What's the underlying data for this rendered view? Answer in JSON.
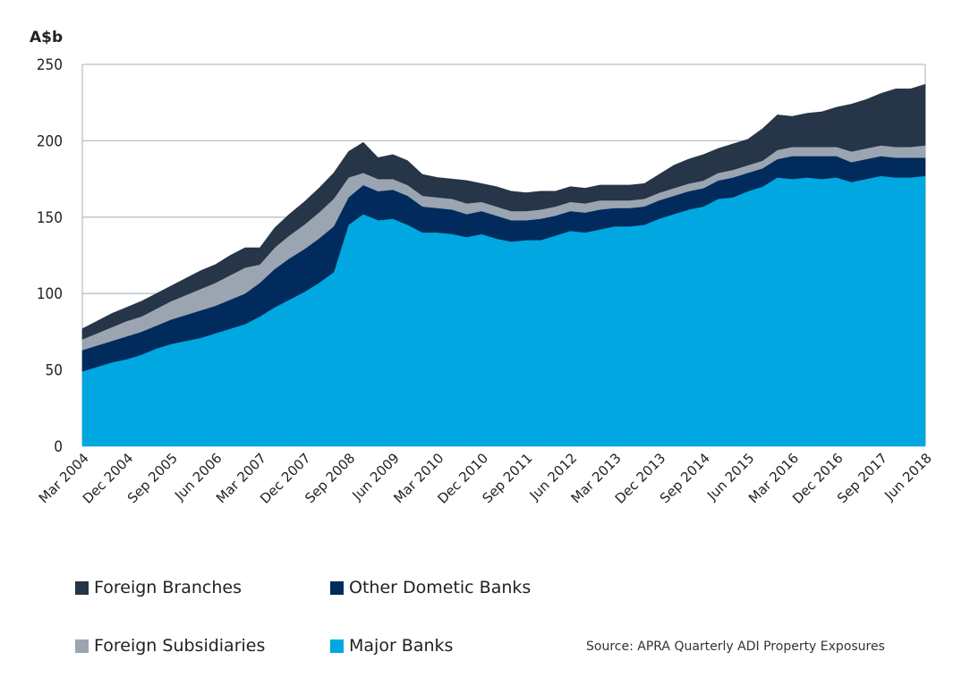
{
  "chart_data": {
    "type": "area",
    "stacked": true,
    "ylabel": "A$b",
    "ylim": [
      0,
      250
    ],
    "yticks": [
      0,
      50,
      100,
      150,
      200,
      250
    ],
    "grid": true,
    "x": [
      "Mar 2004",
      "Jun 2004",
      "Sep 2004",
      "Dec 2004",
      "Mar 2005",
      "Jun 2005",
      "Sep 2005",
      "Dec 2005",
      "Mar 2006",
      "Jun 2006",
      "Sep 2006",
      "Dec 2006",
      "Mar 2007",
      "Jun 2007",
      "Sep 2007",
      "Dec 2007",
      "Mar 2008",
      "Jun 2008",
      "Sep 2008",
      "Dec 2008",
      "Mar 2009",
      "Jun 2009",
      "Sep 2009",
      "Dec 2009",
      "Mar 2010",
      "Jun 2010",
      "Sep 2010",
      "Dec 2010",
      "Mar 2011",
      "Jun 2011",
      "Sep 2011",
      "Dec 2011",
      "Mar 2012",
      "Jun 2012",
      "Sep 2012",
      "Dec 2012",
      "Mar 2013",
      "Jun 2013",
      "Sep 2013",
      "Dec 2013",
      "Mar 2014",
      "Jun 2014",
      "Sep 2014",
      "Dec 2014",
      "Mar 2015",
      "Jun 2015",
      "Sep 2015",
      "Dec 2015",
      "Mar 2016",
      "Jun 2016",
      "Sep 2016",
      "Dec 2016",
      "Mar 2017",
      "Jun 2017",
      "Sep 2017",
      "Dec 2017",
      "Mar 2018",
      "Jun 2018"
    ],
    "xtick_labels": [
      "Mar 2004",
      "Dec 2004",
      "Sep 2005",
      "Jun 2006",
      "Mar 2007",
      "Dec 2007",
      "Sep 2008",
      "Jun 2009",
      "Mar 2010",
      "Dec 2010",
      "Sep 2011",
      "Jun 2012",
      "Mar 2013",
      "Dec 2013",
      "Sep 2014",
      "Jun 2015",
      "Mar 2016",
      "Dec 2016",
      "Sep 2017",
      "Jun 2018"
    ],
    "series": [
      {
        "name": "Major Banks",
        "color": "#00A7E0",
        "values": [
          49,
          52,
          55,
          57,
          60,
          64,
          67,
          69,
          71,
          74,
          77,
          80,
          85,
          91,
          96,
          101,
          107,
          114,
          145,
          152,
          148,
          149,
          145,
          140,
          140,
          139,
          137,
          139,
          136,
          134,
          135,
          135,
          138,
          141,
          140,
          142,
          144,
          144,
          145,
          149,
          152,
          155,
          157,
          162,
          163,
          167,
          170,
          176,
          175,
          176,
          175,
          176,
          173,
          175,
          177,
          176,
          176,
          177
        ]
      },
      {
        "name": "Other Dometic Banks",
        "color": "#002B5C",
        "values": [
          14,
          14,
          14,
          15,
          15,
          15,
          16,
          17,
          18,
          18,
          19,
          20,
          22,
          25,
          27,
          28,
          29,
          30,
          18,
          19,
          19,
          19,
          19,
          17,
          16,
          16,
          15,
          15,
          15,
          14,
          13,
          14,
          13,
          13,
          13,
          13,
          12,
          12,
          12,
          12,
          12,
          12,
          12,
          12,
          13,
          12,
          12,
          12,
          15,
          14,
          15,
          14,
          13,
          13,
          13,
          13,
          13,
          12
        ]
      },
      {
        "name": "Foreign Subsidiaries",
        "color": "#9AA5B1",
        "values": [
          7,
          8,
          9,
          10,
          10,
          11,
          12,
          13,
          14,
          15,
          16,
          17,
          12,
          14,
          15,
          16,
          17,
          18,
          13,
          8,
          8,
          7,
          7,
          7,
          7,
          7,
          7,
          6,
          6,
          6,
          6,
          6,
          6,
          6,
          6,
          6,
          5,
          5,
          5,
          5,
          5,
          5,
          5,
          5,
          5,
          5,
          5,
          6,
          6,
          6,
          6,
          6,
          7,
          7,
          7,
          7,
          7,
          8
        ]
      },
      {
        "name": "Foreign Branches",
        "color": "#263547",
        "values": [
          7,
          8,
          9,
          9,
          10,
          10,
          10,
          11,
          12,
          12,
          13,
          13,
          11,
          13,
          14,
          15,
          16,
          17,
          17,
          20,
          14,
          16,
          16,
          14,
          13,
          13,
          15,
          12,
          13,
          13,
          12,
          12,
          10,
          10,
          10,
          10,
          10,
          10,
          10,
          12,
          15,
          16,
          17,
          16,
          17,
          17,
          21,
          23,
          20,
          22,
          23,
          26,
          31,
          32,
          34,
          38,
          38,
          40
        ]
      }
    ],
    "legend": [
      "Foreign Branches",
      "Other Dometic Banks",
      "Foreign Subsidiaries",
      "Major Banks"
    ],
    "legend_position": "bottom-left",
    "source": "Source: APRA Quarterly ADI Property Exposures"
  }
}
